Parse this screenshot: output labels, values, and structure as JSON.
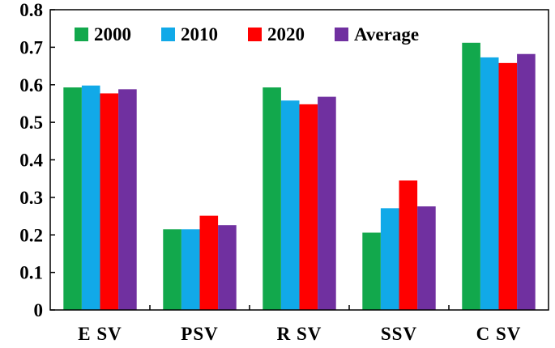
{
  "chart_data": {
    "type": "bar",
    "categories": [
      "ESV",
      "PSV",
      "RSV",
      "SSV",
      "CSV"
    ],
    "category_labels": [
      "E SV",
      "PSV",
      "R SV",
      "SSV",
      "C SV"
    ],
    "series": [
      {
        "name": "2000",
        "color": "#12a84c",
        "values": [
          0.593,
          0.215,
          0.593,
          0.206,
          0.712
        ]
      },
      {
        "name": "2010",
        "color": "#11a9e8",
        "values": [
          0.598,
          0.215,
          0.558,
          0.271,
          0.673
        ]
      },
      {
        "name": "2020",
        "color": "#ff0000",
        "values": [
          0.577,
          0.251,
          0.548,
          0.345,
          0.658
        ]
      },
      {
        "name": "Average",
        "color": "#7030a0",
        "values": [
          0.588,
          0.226,
          0.568,
          0.276,
          0.682
        ]
      }
    ],
    "ylim": [
      0,
      0.8
    ],
    "yticks": [
      "0",
      "0.1",
      "0.2",
      "0.3",
      "0.4",
      "0.5",
      "0.6",
      "0.7",
      "0.8"
    ],
    "legend_position": "top",
    "grid": false,
    "xlabel": "",
    "ylabel": "",
    "title": ""
  }
}
